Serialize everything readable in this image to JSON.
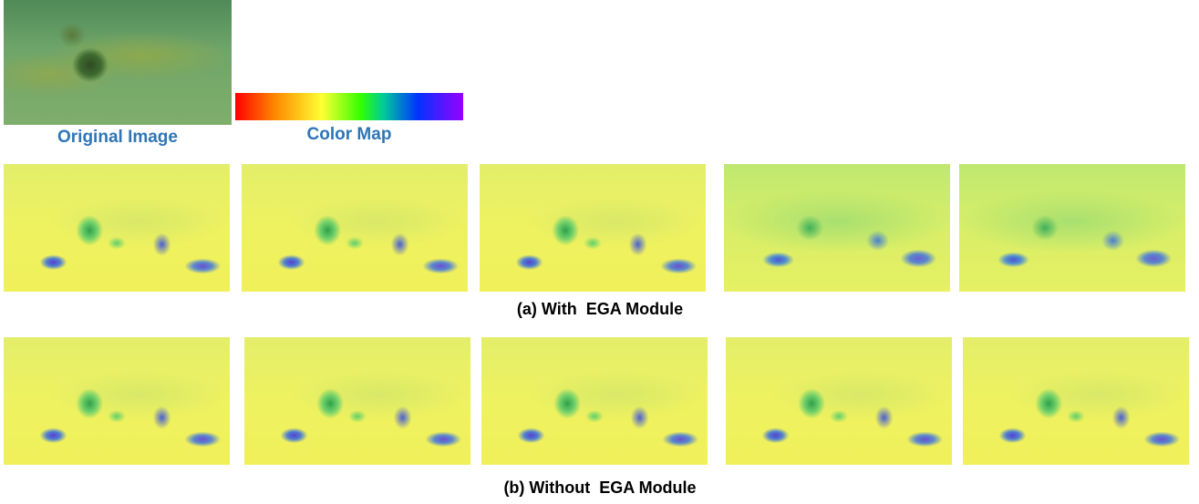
{
  "labels": {
    "original": "Original Image",
    "colormap": "Color Map"
  },
  "captions": {
    "a": "(a) With  EGA Module",
    "b": "(b) Without  EGA Module"
  }
}
